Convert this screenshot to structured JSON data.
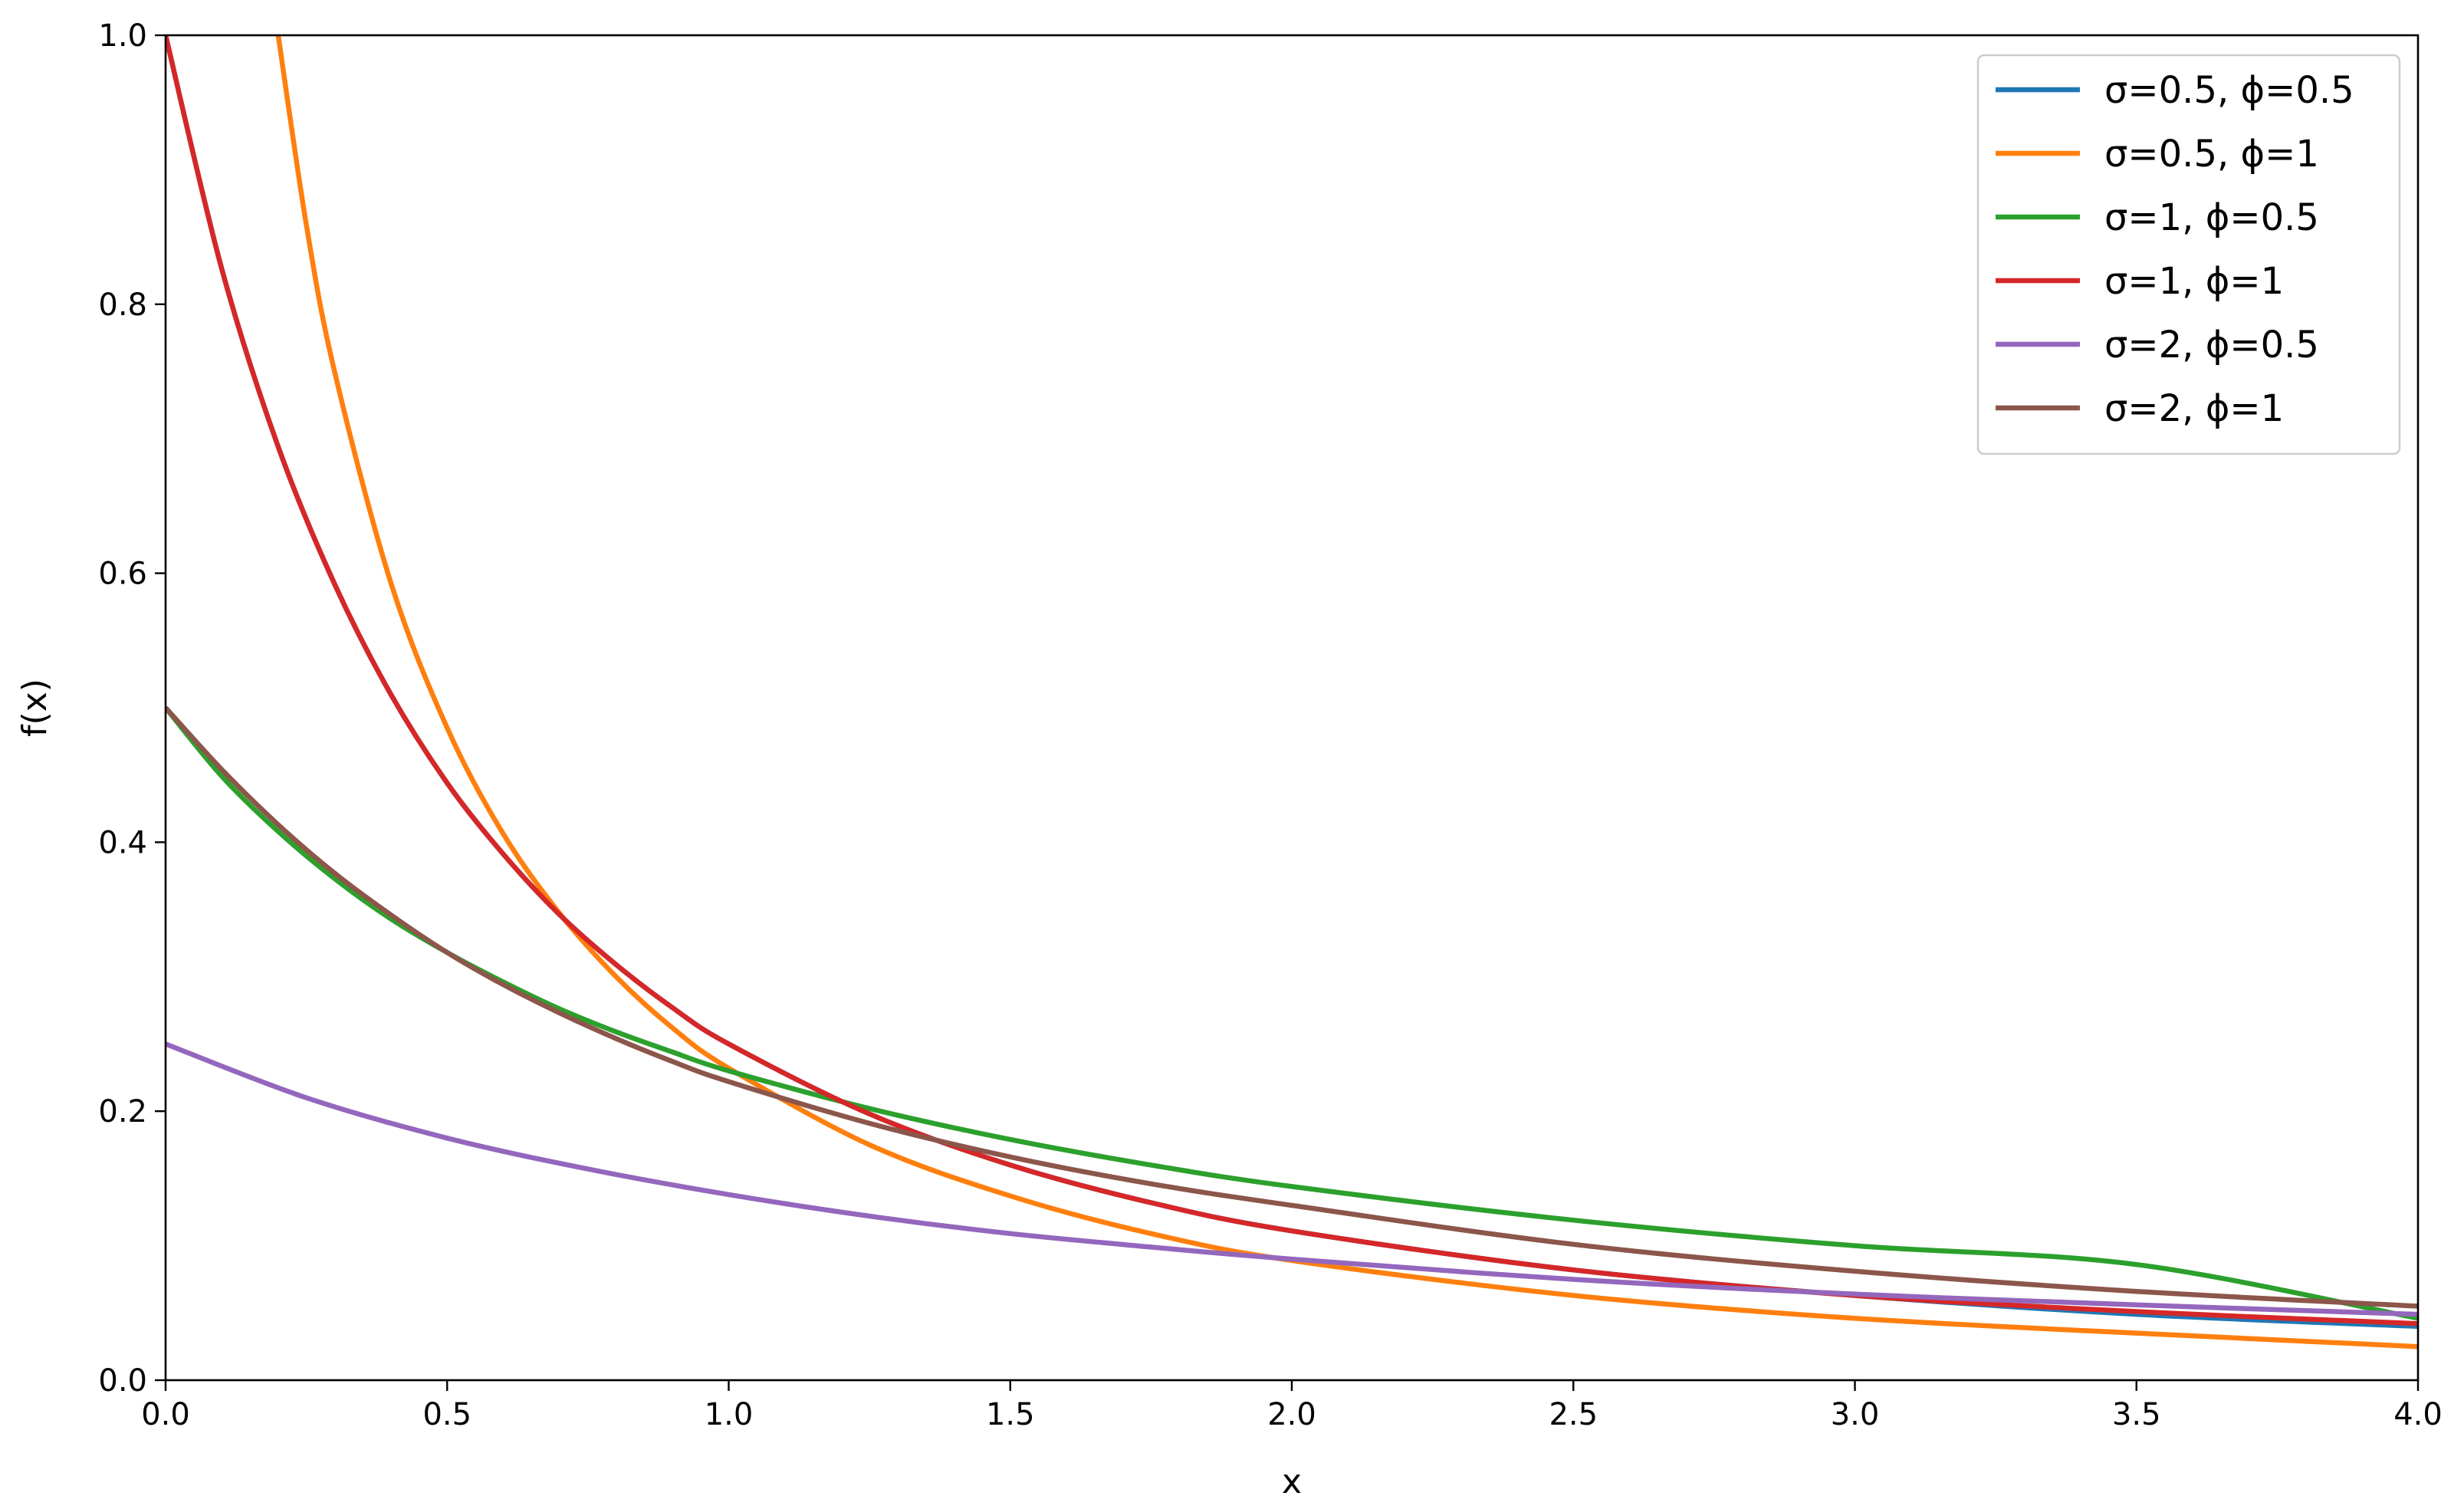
{
  "chart_data": {
    "type": "line",
    "title": "",
    "xlabel": "x",
    "ylabel": "f(x)",
    "xlim": [
      0,
      4
    ],
    "ylim": [
      0,
      1
    ],
    "xticks": [
      "0.0",
      "0.5",
      "1.0",
      "1.5",
      "2.0",
      "2.5",
      "3.0",
      "3.5",
      "4.0"
    ],
    "yticks": [
      "0.0",
      "0.2",
      "0.4",
      "0.6",
      "0.8",
      "1.0"
    ],
    "grid": false,
    "legend_position": "top-right",
    "series": [
      {
        "name": "σ=0.5, ϕ=0.5",
        "color": "#1f77b4",
        "x": [
          0,
          0.1,
          0.2,
          0.3,
          0.4,
          0.5,
          0.6,
          0.7,
          0.8,
          0.9,
          1.0,
          1.25,
          1.5,
          1.75,
          2.0,
          2.5,
          3.0,
          3.5,
          4.0
        ],
        "y": [
          1.0,
          0.826,
          0.694,
          0.592,
          0.51,
          0.444,
          0.391,
          0.346,
          0.309,
          0.277,
          0.25,
          0.198,
          0.16,
          0.132,
          0.111,
          0.082,
          0.063,
          0.049,
          0.04
        ]
      },
      {
        "name": "σ=0.5, ϕ=1",
        "color": "#ff7f0e",
        "x": [
          0.2,
          0.25,
          0.3,
          0.4,
          0.5,
          0.6,
          0.7,
          0.8,
          0.9,
          1.0,
          1.25,
          1.5,
          1.75,
          2.0,
          2.5,
          3.0,
          3.5,
          4.0
        ],
        "y": [
          1.0,
          0.859,
          0.75,
          0.593,
          0.485,
          0.406,
          0.347,
          0.3,
          0.262,
          0.232,
          0.175,
          0.137,
          0.109,
          0.089,
          0.063,
          0.046,
          0.035,
          0.025
        ]
      },
      {
        "name": "σ=1, ϕ=0.5",
        "color": "#2ca02c",
        "x": [
          0,
          0.1,
          0.2,
          0.3,
          0.4,
          0.5,
          0.6,
          0.7,
          0.8,
          0.9,
          1.0,
          1.25,
          1.5,
          1.75,
          2.0,
          2.5,
          3.0,
          3.5,
          4.0
        ],
        "y": [
          0.5,
          0.449,
          0.408,
          0.373,
          0.343,
          0.318,
          0.296,
          0.276,
          0.259,
          0.244,
          0.23,
          0.202,
          0.179,
          0.16,
          0.144,
          0.119,
          0.1,
          0.086,
          0.046
        ]
      },
      {
        "name": "σ=1, ϕ=1",
        "color": "#d62728",
        "x": [
          0,
          0.1,
          0.2,
          0.3,
          0.4,
          0.5,
          0.6,
          0.7,
          0.8,
          0.9,
          1.0,
          1.25,
          1.5,
          1.75,
          2.0,
          2.5,
          3.0,
          3.5,
          4.0
        ],
        "y": [
          1.0,
          0.826,
          0.694,
          0.592,
          0.51,
          0.444,
          0.391,
          0.346,
          0.309,
          0.277,
          0.25,
          0.198,
          0.16,
          0.132,
          0.111,
          0.082,
          0.063,
          0.051,
          0.042
        ]
      },
      {
        "name": "σ=2, ϕ=0.5",
        "color": "#9467bd",
        "x": [
          0,
          0.25,
          0.5,
          0.75,
          1.0,
          1.25,
          1.5,
          1.75,
          2.0,
          2.5,
          3.0,
          3.5,
          4.0
        ],
        "y": [
          0.25,
          0.21,
          0.18,
          0.157,
          0.138,
          0.122,
          0.109,
          0.099,
          0.09,
          0.075,
          0.064,
          0.056,
          0.049
        ]
      },
      {
        "name": "σ=2, ϕ=1",
        "color": "#8c564b",
        "x": [
          0,
          0.1,
          0.2,
          0.3,
          0.4,
          0.5,
          0.6,
          0.7,
          0.8,
          0.9,
          1.0,
          1.25,
          1.5,
          1.75,
          2.0,
          2.5,
          3.0,
          3.5,
          4.0
        ],
        "y": [
          0.5,
          0.454,
          0.413,
          0.377,
          0.346,
          0.318,
          0.294,
          0.273,
          0.254,
          0.237,
          0.222,
          0.191,
          0.166,
          0.146,
          0.13,
          0.101,
          0.081,
          0.066,
          0.055
        ]
      }
    ]
  }
}
